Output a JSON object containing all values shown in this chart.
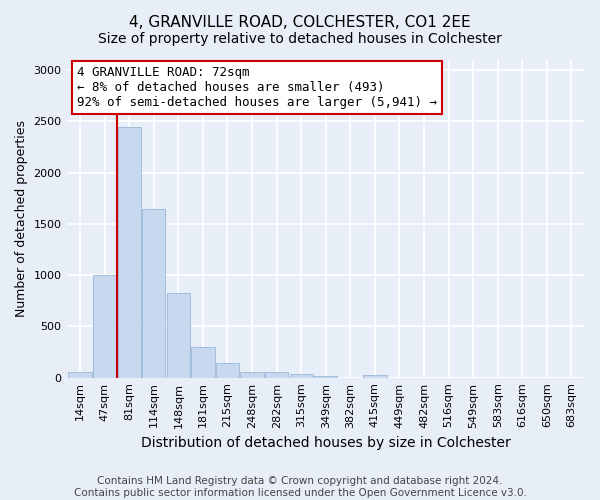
{
  "title": "4, GRANVILLE ROAD, COLCHESTER, CO1 2EE",
  "subtitle": "Size of property relative to detached houses in Colchester",
  "xlabel": "Distribution of detached houses by size in Colchester",
  "ylabel": "Number of detached properties",
  "categories": [
    "14sqm",
    "47sqm",
    "81sqm",
    "114sqm",
    "148sqm",
    "181sqm",
    "215sqm",
    "248sqm",
    "282sqm",
    "315sqm",
    "349sqm",
    "382sqm",
    "415sqm",
    "449sqm",
    "482sqm",
    "516sqm",
    "549sqm",
    "583sqm",
    "616sqm",
    "650sqm",
    "683sqm"
  ],
  "values": [
    60,
    1000,
    2450,
    1650,
    830,
    300,
    140,
    55,
    55,
    40,
    20,
    0,
    30,
    0,
    0,
    0,
    0,
    0,
    0,
    0,
    0
  ],
  "bar_color": "#c8d8ee",
  "bar_edge_color": "#9ab8d8",
  "vline_color": "#cc0000",
  "vline_x": 1.5,
  "annotation_text": "4 GRANVILLE ROAD: 72sqm\n← 8% of detached houses are smaller (493)\n92% of semi-detached houses are larger (5,941) →",
  "annotation_box_color": "#ffffff",
  "annotation_box_edge_color": "#cc0000",
  "ylim": [
    0,
    3100
  ],
  "yticks": [
    0,
    500,
    1000,
    1500,
    2000,
    2500,
    3000
  ],
  "footer_line1": "Contains HM Land Registry data © Crown copyright and database right 2024.",
  "footer_line2": "Contains public sector information licensed under the Open Government Licence v3.0.",
  "background_color": "#e8eef8",
  "grid_color": "#ffffff",
  "title_fontsize": 11,
  "axis_label_fontsize": 9,
  "tick_fontsize": 8,
  "footer_fontsize": 7.5,
  "annotation_fontsize": 9
}
